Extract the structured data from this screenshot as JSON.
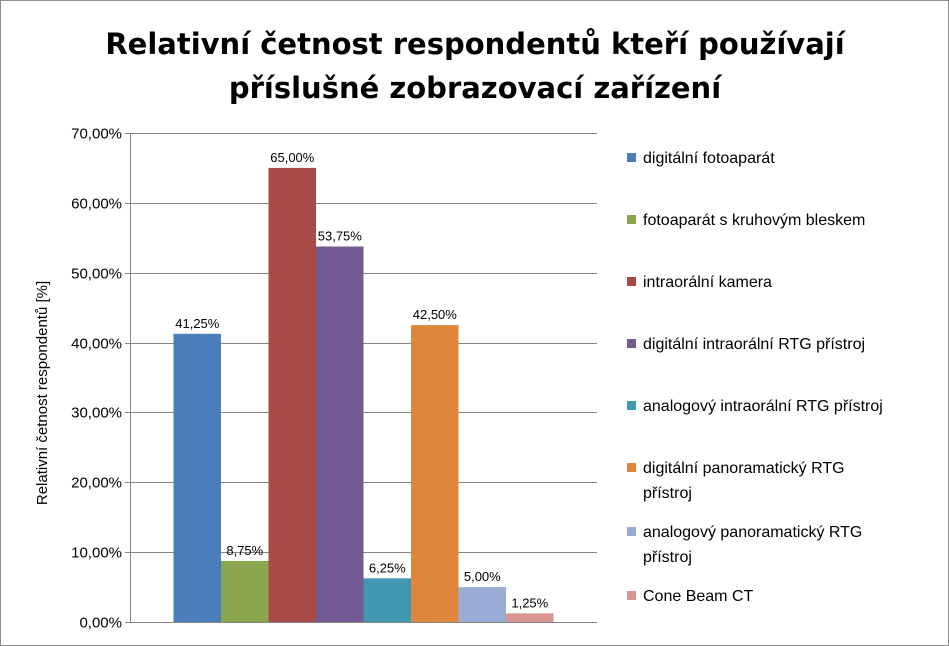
{
  "chart_data": {
    "type": "bar",
    "title_lines": [
      "Relativní četnost respondentů kteří používají",
      "příslušné zobrazovací zařízení"
    ],
    "ylabel": "Relativní četnost respondentů [%]",
    "xlabel": "",
    "ylim": [
      0,
      70
    ],
    "ytick_step": 10,
    "ytick_labels": [
      "0,00%",
      "10,00%",
      "20,00%",
      "30,00%",
      "40,00%",
      "50,00%",
      "60,00%",
      "70,00%"
    ],
    "grid": true,
    "legend_position": "right",
    "series": [
      {
        "name": "digitální fotoaparát",
        "legend_lines": [
          "digitální fotoaparát"
        ],
        "value": 41.25,
        "label": "41,25%",
        "color": "#4a7ebb"
      },
      {
        "name": "fotoaparát s kruhovým bleskem",
        "legend_lines": [
          "fotoaparát s kruhovým bleskem"
        ],
        "value": 8.75,
        "label": "8,75%",
        "color": "#8ba64c"
      },
      {
        "name": "intraorální kamera",
        "legend_lines": [
          "intraorální kamera"
        ],
        "value": 65.0,
        "label": "65,00%",
        "color": "#a84a48"
      },
      {
        "name": "digitální intraorální RTG přístroj",
        "legend_lines": [
          "digitální intraorální RTG přístroj"
        ],
        "value": 53.75,
        "label": "53,75%",
        "color": "#745a93"
      },
      {
        "name": "analogový intraorální RTG přístroj",
        "legend_lines": [
          "analogový intraorální RTG přístroj"
        ],
        "value": 6.25,
        "label": "6,25%",
        "color": "#4298b0"
      },
      {
        "name": "digitální panoramatický RTG přístroj",
        "legend_lines": [
          "digitální panoramatický RTG",
          "přístroj"
        ],
        "value": 42.5,
        "label": "42,50%",
        "color": "#e0863c"
      },
      {
        "name": "analogový panoramatický RTG přístroj",
        "legend_lines": [
          "analogový panoramatický RTG",
          "přístroj"
        ],
        "value": 5.0,
        "label": "5,00%",
        "color": "#99acd6"
      },
      {
        "name": "Cone Beam CT",
        "legend_lines": [
          "Cone Beam CT"
        ],
        "value": 1.25,
        "label": "1,25%",
        "color": "#d99794"
      }
    ]
  }
}
